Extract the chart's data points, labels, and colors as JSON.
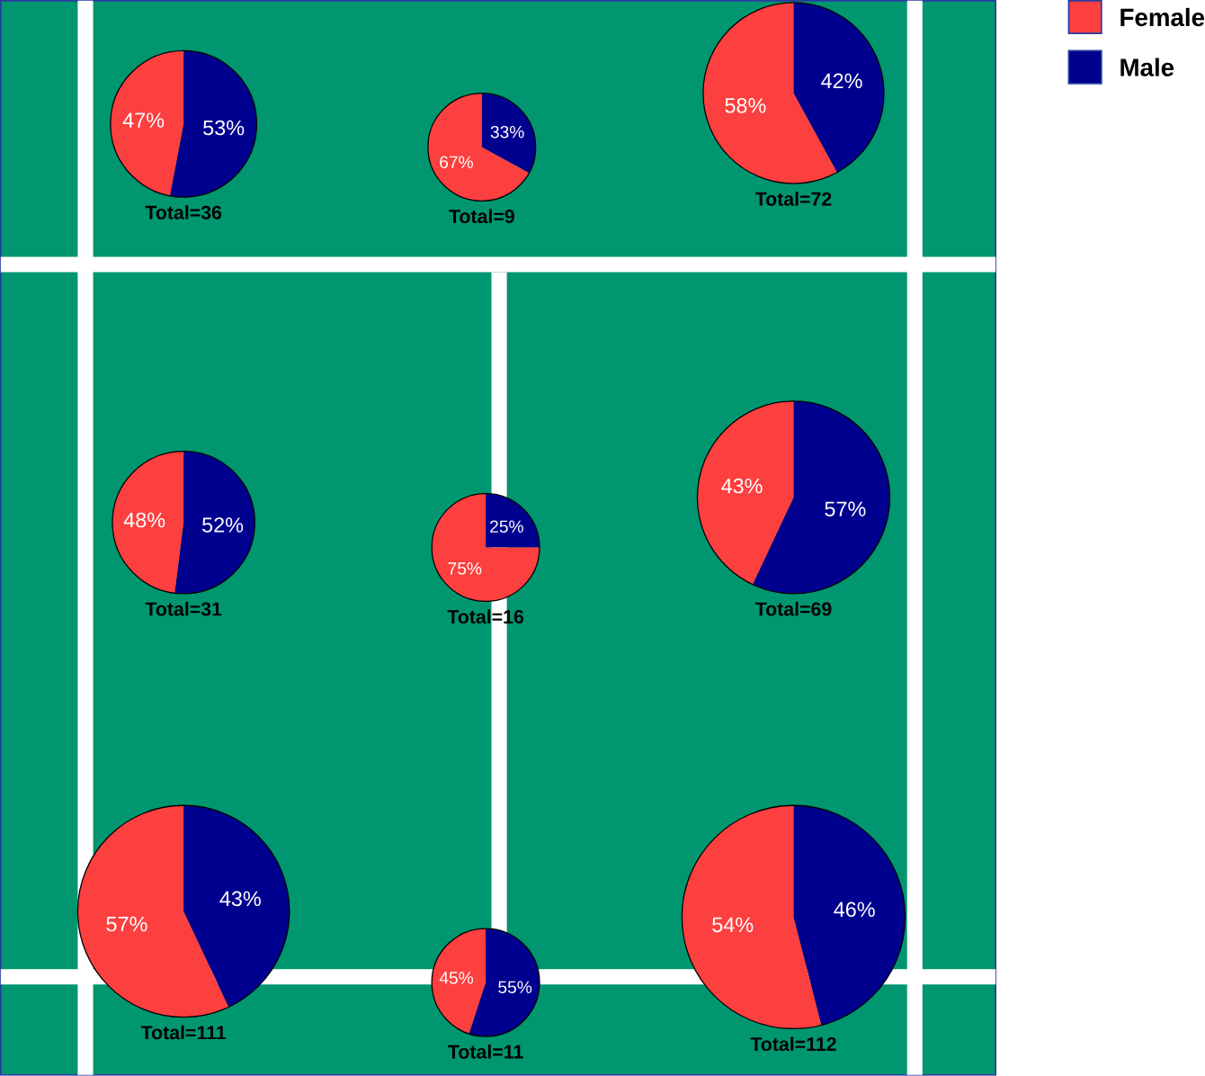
{
  "chart_data": [
    {
      "type": "pie",
      "categories": [
        "Female",
        "Male"
      ],
      "values": [
        47,
        53
      ],
      "value_labels": [
        "47%",
        "53%"
      ],
      "colors": [
        "#fc3f3f",
        "#00008f"
      ],
      "legend": "top right",
      "annotations": [
        "Total=36"
      ]
    },
    {
      "type": "pie",
      "categories": [
        null,
        null
      ],
      "values": [
        67,
        33
      ],
      "value_labels": [
        "67%",
        "33%"
      ],
      "colors": [
        "#fc3f3f",
        "#00008f"
      ],
      "annotations": [
        "Total=9"
      ]
    },
    {
      "type": "pie",
      "categories": [
        null,
        null
      ],
      "values": [
        58,
        42
      ],
      "value_labels": [
        "58%",
        "42%"
      ],
      "colors": [
        "#fc3f3f",
        "#00008f"
      ],
      "annotations": [
        "Total=72"
      ]
    },
    {
      "type": "pie",
      "categories": [
        null,
        null
      ],
      "values": [
        48,
        52
      ],
      "value_labels": [
        "48%",
        "52%"
      ],
      "colors": [
        "#fc3f3f",
        "#00008f"
      ],
      "annotations": [
        "Total=31"
      ]
    },
    {
      "type": "pie",
      "categories": [
        null,
        null
      ],
      "values": [
        75,
        25
      ],
      "value_labels": [
        "75%",
        "25%"
      ],
      "colors": [
        "#fc3f3f",
        "#00008f"
      ],
      "annotations": [
        "Total=16"
      ]
    },
    {
      "type": "pie",
      "categories": [
        null,
        null
      ],
      "values": [
        43,
        57
      ],
      "value_labels": [
        "43%",
        "57%"
      ],
      "colors": [
        "#fc3f3f",
        "#00008f"
      ],
      "annotations": [
        "Total=69"
      ]
    },
    {
      "type": "pie",
      "categories": [
        null,
        null
      ],
      "values": [
        57,
        43
      ],
      "value_labels": [
        "57%",
        "43%"
      ],
      "colors": [
        "#fc3f3f",
        "#00008f"
      ],
      "annotations": [
        "Total=111"
      ]
    },
    {
      "type": "pie",
      "categories": [
        null,
        null
      ],
      "values": [
        45,
        55
      ],
      "value_labels": [
        "45%",
        "55%"
      ],
      "colors": [
        "#fc3f3f",
        "#00008f"
      ],
      "annotations": [
        "Total=11"
      ]
    },
    {
      "type": "pie",
      "categories": [
        null,
        null
      ],
      "values": [
        54,
        46
      ],
      "value_labels": [
        "54%",
        "46%"
      ],
      "colors": [
        "#fc3f3f",
        "#00008f"
      ],
      "annotations": [
        "Total=112"
      ]
    }
  ]
}
